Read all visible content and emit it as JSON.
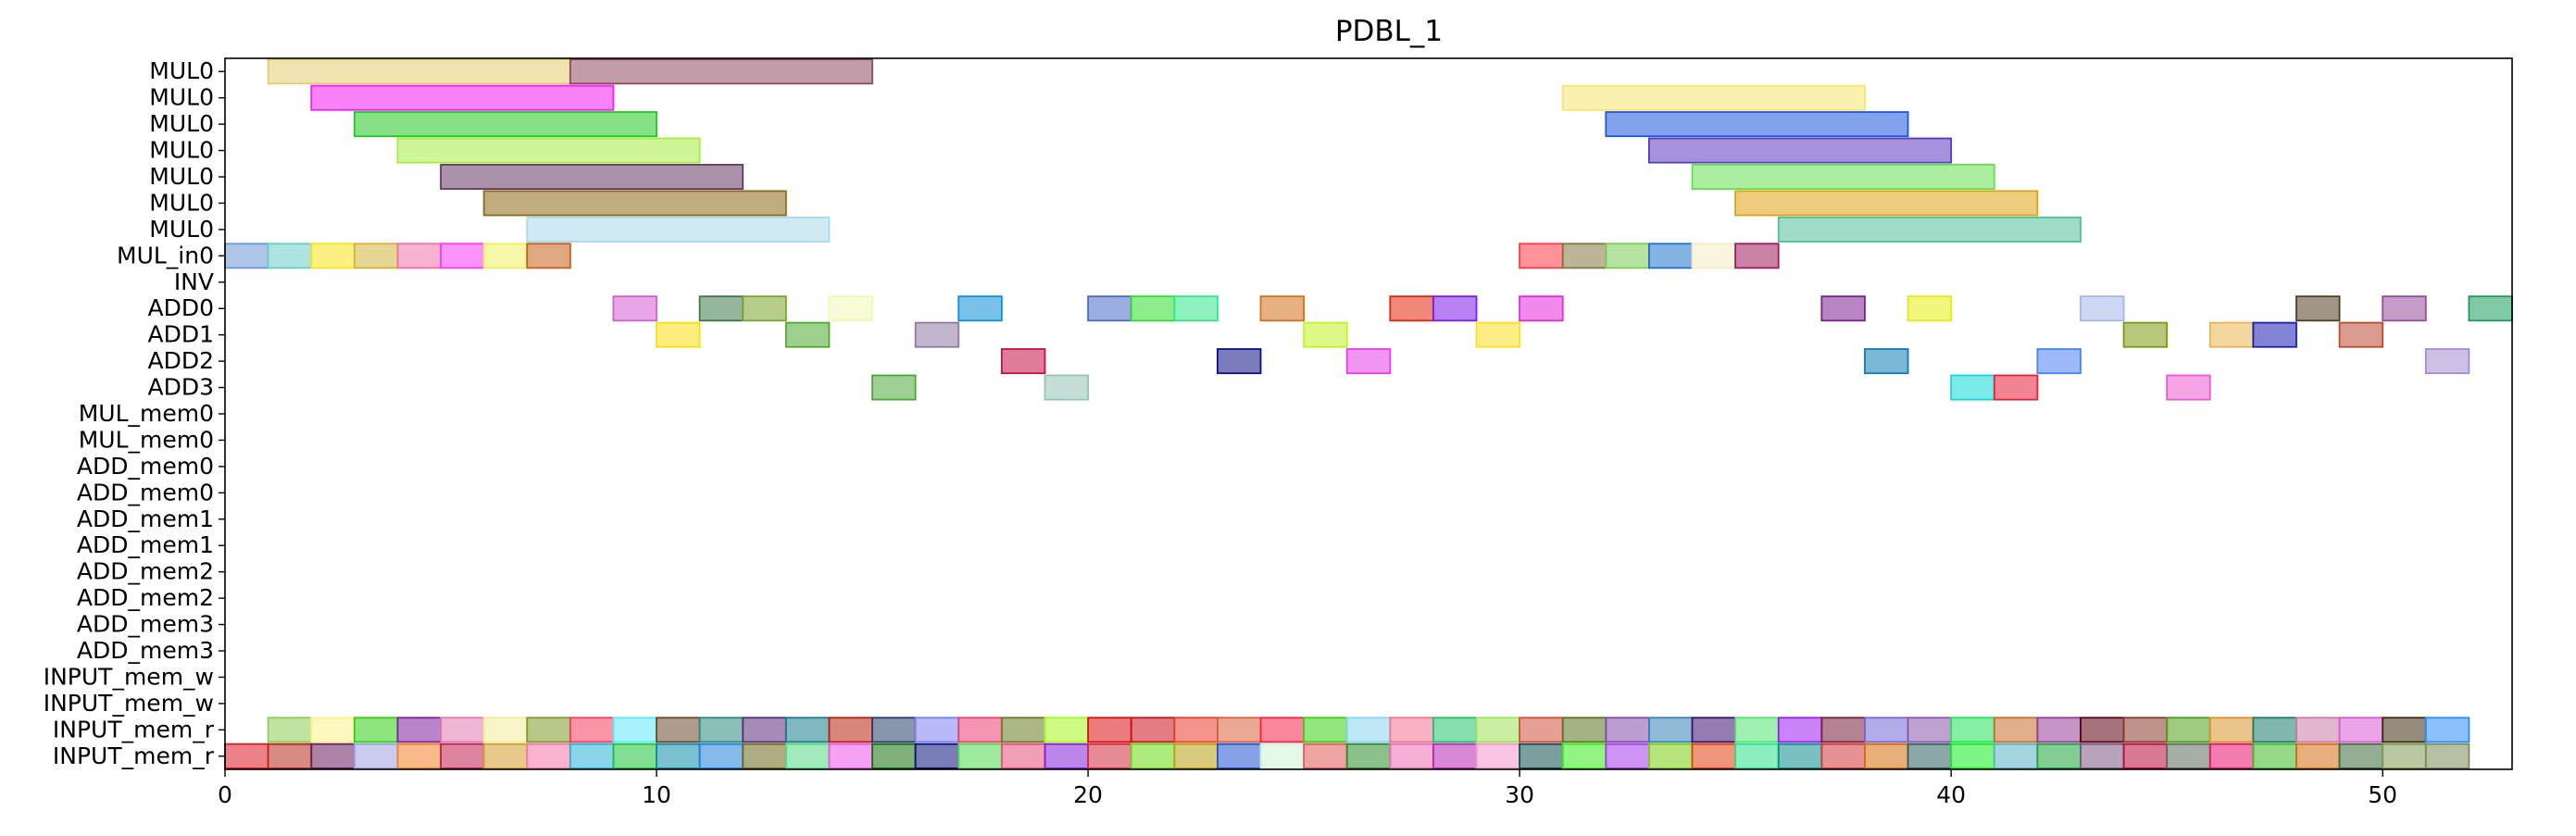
{
  "chart_data": {
    "type": "gantt",
    "title": "PDBL_1",
    "xlim": [
      0,
      53
    ],
    "xticks": [
      0,
      10,
      20,
      30,
      40,
      50
    ],
    "rows": [
      "MUL0",
      "MUL0",
      "MUL0",
      "MUL0",
      "MUL0",
      "MUL0",
      "MUL0",
      "MUL_in0",
      "INV",
      "ADD0",
      "ADD1",
      "ADD2",
      "ADD3",
      "MUL_mem0",
      "MUL_mem0",
      "ADD_mem0",
      "ADD_mem0",
      "ADD_mem1",
      "ADD_mem1",
      "ADD_mem2",
      "ADD_mem2",
      "ADD_mem3",
      "ADD_mem3",
      "INPUT_mem_w",
      "INPUT_mem_w",
      "INPUT_mem_r",
      "INPUT_mem_r"
    ],
    "bars": [
      {
        "row": 0,
        "start": 1,
        "end": 8,
        "color": "#e6cc70"
      },
      {
        "row": 0,
        "start": 8,
        "end": 15,
        "color": "#8e4a62"
      },
      {
        "row": 1,
        "start": 2,
        "end": 9,
        "color": "#f21ef2"
      },
      {
        "row": 1,
        "start": 31,
        "end": 38,
        "color": "#f5e66b"
      },
      {
        "row": 2,
        "start": 3,
        "end": 10,
        "color": "#22c922"
      },
      {
        "row": 2,
        "start": 32,
        "end": 39,
        "color": "#1e55e0"
      },
      {
        "row": 3,
        "start": 4,
        "end": 11,
        "color": "#a6ec44"
      },
      {
        "row": 3,
        "start": 33,
        "end": 40,
        "color": "#5a38c0"
      },
      {
        "row": 4,
        "start": 5,
        "end": 12,
        "color": "#653a62"
      },
      {
        "row": 4,
        "start": 34,
        "end": 41,
        "color": "#66e050"
      },
      {
        "row": 5,
        "start": 6,
        "end": 13,
        "color": "#8a6a16"
      },
      {
        "row": 5,
        "start": 35,
        "end": 42,
        "color": "#dea212"
      },
      {
        "row": 6,
        "start": 7,
        "end": 14,
        "color": "#a8d8ea"
      },
      {
        "row": 6,
        "start": 36,
        "end": 43,
        "color": "#4ebf99"
      },
      {
        "row": 7,
        "start": 0,
        "end": 1,
        "color": "#6a98d4"
      },
      {
        "row": 7,
        "start": 1,
        "end": 2,
        "color": "#6acdc9"
      },
      {
        "row": 7,
        "start": 2,
        "end": 3,
        "color": "#f8e41a"
      },
      {
        "row": 7,
        "start": 3,
        "end": 4,
        "color": "#d2b43a"
      },
      {
        "row": 7,
        "start": 4,
        "end": 5,
        "color": "#ee72a8"
      },
      {
        "row": 7,
        "start": 5,
        "end": 6,
        "color": "#f83af6"
      },
      {
        "row": 7,
        "start": 6,
        "end": 7,
        "color": "#eef060"
      },
      {
        "row": 7,
        "start": 7,
        "end": 8,
        "color": "#c4601a"
      },
      {
        "row": 7,
        "start": 30,
        "end": 31,
        "color": "#ff3848"
      },
      {
        "row": 7,
        "start": 31,
        "end": 32,
        "color": "#807840"
      },
      {
        "row": 7,
        "start": 32,
        "end": 33,
        "color": "#7ccc52"
      },
      {
        "row": 7,
        "start": 33,
        "end": 34,
        "color": "#1e72cc"
      },
      {
        "row": 7,
        "start": 34,
        "end": 35,
        "color": "#f4ecc4"
      },
      {
        "row": 7,
        "start": 35,
        "end": 36,
        "color": "#9e1a5c"
      },
      {
        "row": 9,
        "start": 9,
        "end": 10,
        "color": "#d45ed2"
      },
      {
        "row": 9,
        "start": 11,
        "end": 12,
        "color": "#3e784a"
      },
      {
        "row": 9,
        "start": 12,
        "end": 13,
        "color": "#7ca42c"
      },
      {
        "row": 9,
        "start": 14,
        "end": 15,
        "color": "#f2f8b2"
      },
      {
        "row": 9,
        "start": 17,
        "end": 18,
        "color": "#0c8ed8"
      },
      {
        "row": 9,
        "start": 20,
        "end": 21,
        "color": "#4a6cc4"
      },
      {
        "row": 9,
        "start": 21,
        "end": 22,
        "color": "#30de30"
      },
      {
        "row": 9,
        "start": 22,
        "end": 23,
        "color": "#30e886"
      },
      {
        "row": 9,
        "start": 24,
        "end": 25,
        "color": "#d4701a"
      },
      {
        "row": 9,
        "start": 27,
        "end": 28,
        "color": "#e2260e"
      },
      {
        "row": 9,
        "start": 28,
        "end": 29,
        "color": "#7c1eea"
      },
      {
        "row": 9,
        "start": 30,
        "end": 31,
        "color": "#e42ad8"
      },
      {
        "row": 9,
        "start": 37,
        "end": 38,
        "color": "#7c2090"
      },
      {
        "row": 9,
        "start": 39,
        "end": 40,
        "color": "#e4ec10"
      },
      {
        "row": 9,
        "start": 43,
        "end": 44,
        "color": "#a6b6e6"
      },
      {
        "row": 9,
        "start": 48,
        "end": 49,
        "color": "#504020"
      },
      {
        "row": 9,
        "start": 50,
        "end": 51,
        "color": "#964a9a"
      },
      {
        "row": 9,
        "start": 52,
        "end": 53,
        "color": "#1a9c5a"
      },
      {
        "row": 10,
        "start": 10,
        "end": 11,
        "color": "#fade12"
      },
      {
        "row": 10,
        "start": 13,
        "end": 14,
        "color": "#50a830"
      },
      {
        "row": 10,
        "start": 16,
        "end": 17,
        "color": "#8e7aa4"
      },
      {
        "row": 10,
        "start": 25,
        "end": 26,
        "color": "#c2f224"
      },
      {
        "row": 10,
        "start": 29,
        "end": 30,
        "color": "#fcde24"
      },
      {
        "row": 10,
        "start": 44,
        "end": 45,
        "color": "#7c9a10"
      },
      {
        "row": 10,
        "start": 46,
        "end": 47,
        "color": "#eab452"
      },
      {
        "row": 10,
        "start": 47,
        "end": 48,
        "color": "#1c1eb0"
      },
      {
        "row": 10,
        "start": 49,
        "end": 50,
        "color": "#bc4a32"
      },
      {
        "row": 11,
        "start": 18,
        "end": 19,
        "color": "#c60e46"
      },
      {
        "row": 11,
        "start": 23,
        "end": 24,
        "color": "#0c0e84"
      },
      {
        "row": 11,
        "start": 26,
        "end": 27,
        "color": "#e63ee8"
      },
      {
        "row": 11,
        "start": 38,
        "end": 39,
        "color": "#0e7cb6"
      },
      {
        "row": 11,
        "start": 42,
        "end": 43,
        "color": "#4a82f0"
      },
      {
        "row": 11,
        "start": 51,
        "end": 52,
        "color": "#a68ad0"
      },
      {
        "row": 12,
        "start": 15,
        "end": 16,
        "color": "#4ca63a"
      },
      {
        "row": 12,
        "start": 19,
        "end": 20,
        "color": "#94c2b6"
      },
      {
        "row": 12,
        "start": 40,
        "end": 41,
        "color": "#10d8d8"
      },
      {
        "row": 12,
        "start": 41,
        "end": 42,
        "color": "#e81e3a"
      },
      {
        "row": 12,
        "start": 45,
        "end": 46,
        "color": "#ec5ad0"
      }
    ],
    "rowA_colors": [
      "#8ccc56",
      "#fcf08c",
      "#32d012",
      "#7e20a0",
      "#e27aae",
      "#f0ec9a",
      "#7e9a2a",
      "#f43e5e",
      "#5ee8fa",
      "#6a4a2c",
      "#2a8a7e",
      "#5c2c7c",
      "#1a7c8a",
      "#b8200c",
      "#283c6a",
      "#7e80ee",
      "#ee3e72",
      "#6a7c22",
      "#a8f820",
      "#da0e10",
      "#c8101e",
      "#ea3e2e",
      "#d8603e",
      "#f62448",
      "#3ad012",
      "#8ad4f2",
      "#f4728e",
      "#20c26a",
      "#9ee256",
      "#d24e3e",
      "#5a7420",
      "#824cac",
      "#3484b4",
      "#3c1072",
      "#52e472",
      "#9a1ef0",
      "#741e3a",
      "#7668d8",
      "#8c56ac",
      "#20e45a",
      "#c4702a",
      "#983c98",
      "#5a0010",
      "#8a3a2a",
      "#4e9c1a",
      "#d8942a",
      "#1a7c6a",
      "#cc7aa8",
      "#d85ad4",
      "#3c2c10",
      "#2c8cf8"
    ],
    "rowB_colors": [
      "#de1a26",
      "#b42a1c",
      "#681c5e",
      "#a0a0e0",
      "#f4822a",
      "#c21e52",
      "#d49c2e",
      "#f876aa",
      "#28b4d8",
      "#1cc238",
      "#0c8ca8",
      "#2080d8",
      "#6e681e",
      "#54d884",
      "#ec56ec",
      "#166e0e",
      "#0c1078",
      "#52d852",
      "#e84e7c",
      "#8420d8",
      "#d22a3e",
      "#6ada12",
      "#b8a012",
      "#2052d0",
      "#cef2d4",
      "#e25a5a",
      "#2c8c2c",
      "#ea6eb0",
      "#b828b4",
      "#f096c8",
      "#0e4e4e",
      "#3aec1a",
      "#a43ae8",
      "#7ccc12",
      "#e0400e",
      "#2ae08a",
      "#0e8c8c",
      "#d2363c",
      "#d26e0c",
      "#2c5e5e",
      "#14ee20",
      "#5ab2c2",
      "#1ca43c",
      "#7c5882",
      "#b80c3c",
      "#5c6c5c",
      "#e8106a",
      "#3cbc26",
      "#d46e12",
      "#3c6c3c",
      "#829a56",
      "#7c8c5a"
    ]
  }
}
